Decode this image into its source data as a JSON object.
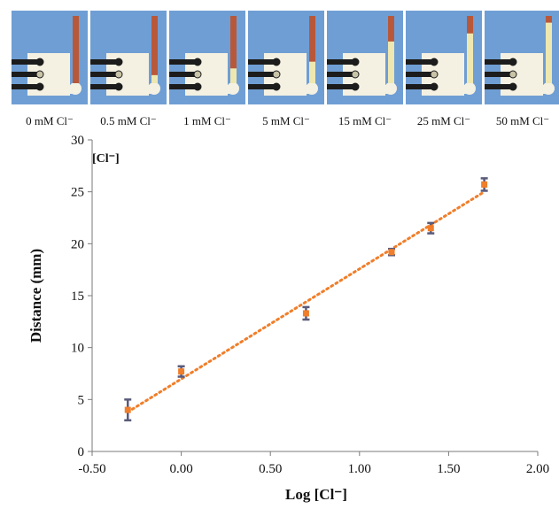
{
  "photos": {
    "captions": [
      "0 mM Cl⁻",
      "0.5 mM Cl⁻",
      "1 mM Cl⁻",
      "5 mM Cl⁻",
      "15 mM Cl⁻",
      "25 mM Cl⁻",
      "50 mM Cl⁻"
    ],
    "background_color": "#6f9ed4",
    "channel_color": "#b8583a",
    "bleached_color": "#efe7b0"
  },
  "chart_data": {
    "type": "scatter",
    "annotation": "[Cl⁻]",
    "xlabel": "Log [Cl⁻]",
    "ylabel": "Distance (mm)",
    "xlim": [
      -0.5,
      2.0
    ],
    "ylim": [
      0,
      30
    ],
    "x_ticks": [
      "-0.50",
      "0.00",
      "0.50",
      "1.00",
      "1.50",
      "2.00"
    ],
    "y_ticks": [
      "0",
      "5",
      "10",
      "15",
      "20",
      "25",
      "30"
    ],
    "grid": false,
    "marker_color": "#f07e2a",
    "errorbar_color": "#5a5a7a",
    "trendline": {
      "style": "dotted",
      "color": "#f07e2a",
      "x": [
        -0.3,
        1.7
      ],
      "y": [
        3.8,
        25.0
      ]
    },
    "series": [
      {
        "x": [
          -0.3,
          0.0,
          0.7,
          1.18,
          1.4,
          1.7
        ],
        "y": [
          4.0,
          7.7,
          13.3,
          19.2,
          21.5,
          25.7
        ],
        "err": [
          1.0,
          0.5,
          0.6,
          0.3,
          0.5,
          0.6
        ]
      }
    ]
  }
}
